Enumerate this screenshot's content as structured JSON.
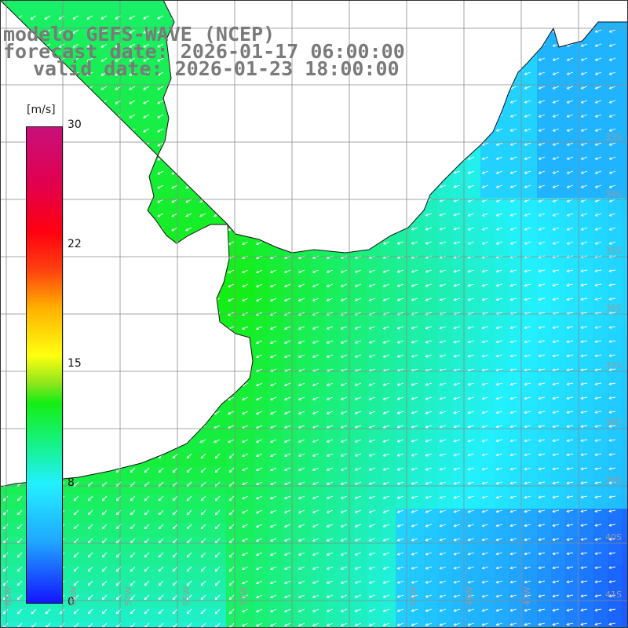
{
  "title": {
    "line1": "modelo GEFS-WAVE (NCEP)",
    "line2": "forecast date: 2026-01-17 06:00:00",
    "line3": "valid date: 2026-01-23 18:00:00"
  },
  "colorbar": {
    "unit": "[m/s]",
    "ticks": [
      "30",
      "22",
      "15",
      "8",
      "0"
    ],
    "colors": [
      "#1414ff",
      "#20a8ff",
      "#22f0ff",
      "#14ee14",
      "#ffff10",
      "#ff4010",
      "#ff0010",
      "#c8107a"
    ]
  },
  "map": {
    "lon_labels": [
      "63W",
      "60W",
      "57W",
      "55W",
      "53W",
      "51W",
      "49W",
      "47W"
    ],
    "lat_labels": [
      "33S",
      "34S",
      "35S",
      "36S",
      "37S",
      "38S",
      "39S",
      "40S",
      "41S"
    ],
    "land_color": "#ffffff",
    "grid_color": "#808080",
    "wind_arrow_color": "#ffffff",
    "wind_direction": "from southwest offshore turning to from east/northeast near the northeast coast"
  }
}
